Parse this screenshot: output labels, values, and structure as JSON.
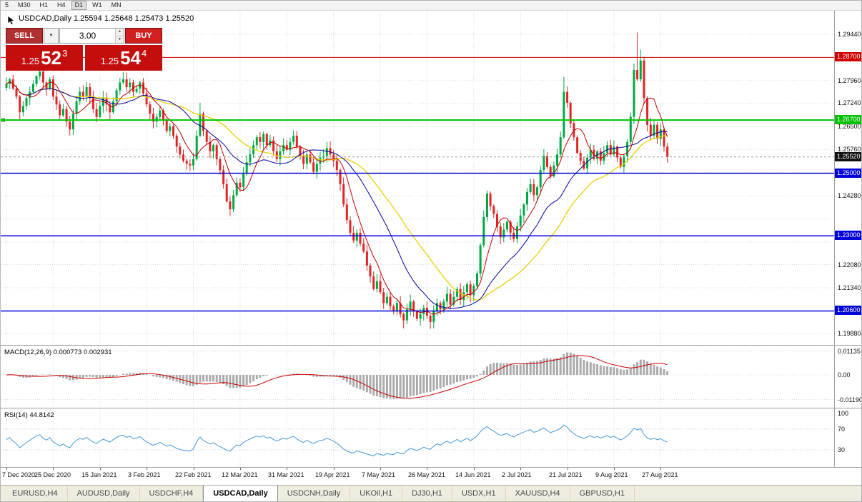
{
  "colors": {
    "bull": "#00a843",
    "bear": "#e02525",
    "grid": "#d8d8d8",
    "ma_fast": "#c00000",
    "ma_mid": "#0000a0",
    "ma_slow": "#e8d200",
    "hline_red": "#d00000",
    "hline_green": "#00c200",
    "hline_blue": "#0000d8",
    "macd_hist": "#ababab",
    "macd_signal": "#cc0000",
    "rsi_line": "#4499dd",
    "badge_black": "#111111"
  },
  "toolbar": {
    "timeframes": [
      {
        "label": "5",
        "active": false
      },
      {
        "label": "M30",
        "active": false
      },
      {
        "label": "H1",
        "active": false
      },
      {
        "label": "H4",
        "active": false
      },
      {
        "label": "D1",
        "active": true
      },
      {
        "label": "W1",
        "active": false
      },
      {
        "label": "MN",
        "active": false
      }
    ]
  },
  "chart": {
    "title": "USDCAD,Daily 1.25594 1.25648 1.25473 1.25520"
  },
  "trade_panel": {
    "sell_label": "SELL",
    "buy_label": "BUY",
    "volume": "3.00",
    "icons": {
      "dropdown": "▼",
      "up": "▲",
      "down": "▼"
    },
    "sell_price": {
      "prefix": "1.25",
      "big": "52",
      "sup": "3"
    },
    "buy_price": {
      "prefix": "1.25",
      "big": "54",
      "sup": "4"
    }
  },
  "tabs": {
    "items": [
      {
        "label": "EURUSD,H4",
        "active": false
      },
      {
        "label": "AUDUSD,Daily",
        "active": false
      },
      {
        "label": "USDCHF,H4",
        "active": false
      },
      {
        "label": "USDCAD,Daily",
        "active": true
      },
      {
        "label": "USDCNH,Daily",
        "active": false
      },
      {
        "label": "UKOil,H1",
        "active": false
      },
      {
        "label": "DJ30,H1",
        "active": false
      },
      {
        "label": "USDX,H1",
        "active": false
      },
      {
        "label": "XAUUSD,H4",
        "active": false
      },
      {
        "label": "GBPUSD,H1",
        "active": false
      }
    ]
  },
  "chart_data": {
    "type": "candlestick",
    "symbol": "USDCAD",
    "timeframe": "Daily",
    "ohlc": {
      "open": "1.25594",
      "high": "1.25648",
      "low": "1.25473",
      "close": "1.25520"
    },
    "y_axis": {
      "min": 1.1988,
      "max": 1.2944,
      "labels_visible": [
        {
          "price": 1.2944,
          "label": "1.29440"
        },
        {
          "price": 1.2796,
          "label": "1.27960"
        },
        {
          "price": 1.2724,
          "label": "1.27240"
        },
        {
          "price": 1.265,
          "label": "1.26500"
        },
        {
          "price": 1.2576,
          "label": "1.25760"
        },
        {
          "price": 1.2428,
          "label": "1.24280"
        },
        {
          "price": 1.2208,
          "label": "1.22080"
        },
        {
          "price": 1.2134,
          "label": "1.21340"
        },
        {
          "price": 1.1988,
          "label": "1.19880"
        }
      ],
      "grid_prices": [
        1.2944,
        1.287,
        1.2796,
        1.2724,
        1.265,
        1.2576,
        1.2502,
        1.2428,
        1.2354,
        1.228,
        1.2208,
        1.2134,
        1.206,
        1.1988
      ]
    },
    "x_axis": {
      "labels": [
        "7 Dec 2020",
        "25 Dec 2020",
        "15 Jan 2021",
        "3 Feb 2021",
        "22 Feb 2021",
        "12 Mar 2021",
        "31 Mar 2021",
        "19 Apr 2021",
        "7 May 2021",
        "26 May 2021",
        "14 Jun 2021",
        "2 Jul 2021",
        "21 Jul 2021",
        "9 Aug 2021",
        "27 Aug 2021"
      ],
      "label_indices": [
        0,
        14,
        28,
        42,
        56,
        70,
        84,
        98,
        112,
        126,
        140,
        154,
        168,
        182,
        196
      ]
    },
    "closes": [
      1.2785,
      1.28,
      1.277,
      1.2745,
      1.2695,
      1.2715,
      1.274,
      1.276,
      1.2785,
      1.281,
      1.2825,
      1.279,
      1.277,
      1.28,
      1.2745,
      1.272,
      1.2685,
      1.2705,
      1.2665,
      1.264,
      1.269,
      1.273,
      1.276,
      1.2745,
      1.2775,
      1.274,
      1.2705,
      1.268,
      1.2715,
      1.274,
      1.272,
      1.2695,
      1.273,
      1.2765,
      1.279,
      1.28,
      1.2775,
      1.279,
      1.276,
      1.277,
      1.279,
      1.2755,
      1.272,
      1.269,
      1.2665,
      1.268,
      1.27,
      1.267,
      1.2635,
      1.265,
      1.262,
      1.2585,
      1.256,
      1.254,
      1.253,
      1.2525,
      1.2545,
      1.262,
      1.269,
      1.2635,
      1.26,
      1.257,
      1.259,
      1.2545,
      1.251,
      1.2465,
      1.241,
      1.2385,
      1.243,
      1.247,
      1.2455,
      1.25,
      1.2535,
      1.256,
      1.259,
      1.2615,
      1.26,
      1.2625,
      1.259,
      1.2605,
      1.257,
      1.2545,
      1.257,
      1.259,
      1.2575,
      1.26,
      1.262,
      1.2585,
      1.2555,
      1.253,
      1.256,
      1.2535,
      1.2505,
      1.253,
      1.255,
      1.2555,
      1.258,
      1.256,
      1.254,
      1.251,
      1.2465,
      1.24,
      1.235,
      1.231,
      1.2285,
      1.231,
      1.2275,
      1.225,
      1.2205,
      1.217,
      1.213,
      1.2155,
      1.212,
      1.2085,
      1.2105,
      1.2075,
      1.206,
      1.2085,
      1.205,
      1.203,
      1.2065,
      1.209,
      1.206,
      1.2035,
      1.205,
      1.207,
      1.2045,
      1.2025,
      1.206,
      1.2085,
      1.2065,
      1.209,
      1.2115,
      1.208,
      1.2105,
      1.213,
      1.2095,
      1.212,
      1.2145,
      1.211,
      1.214,
      1.218,
      1.227,
      1.236,
      1.2435,
      1.2395,
      1.237,
      1.233,
      1.2295,
      1.232,
      1.2345,
      1.231,
      1.229,
      1.233,
      1.2365,
      1.24,
      1.244,
      1.2465,
      1.243,
      1.2455,
      1.251,
      1.2555,
      1.252,
      1.249,
      1.2525,
      1.256,
      1.2615,
      1.276,
      1.2725,
      1.266,
      1.2615,
      1.2565,
      1.254,
      1.2515,
      1.255,
      1.2575,
      1.2545,
      1.257,
      1.254,
      1.2565,
      1.259,
      1.256,
      1.2585,
      1.255,
      1.252,
      1.2555,
      1.26,
      1.268,
      1.283,
      1.28,
      1.286,
      1.274,
      1.2655,
      1.262,
      1.2655,
      1.261,
      1.264,
      1.2585,
      1.2552
    ],
    "wick_overrides": {
      "4": [
        0.0005,
        0.0022
      ],
      "58": [
        0.0035,
        0.0005
      ],
      "119": [
        0.0005,
        0.0026
      ],
      "127": [
        0.0005,
        0.0022
      ],
      "167": [
        0.0048,
        0.0006
      ],
      "189": [
        0.012,
        0.0005
      ],
      "190": [
        0.0035,
        0.0008
      ]
    },
    "ma_periods": {
      "fast": 7,
      "mid": 21,
      "slow": 34
    },
    "hlines": [
      {
        "price": 1.287,
        "badge": "1.28700",
        "color_key": "hline_red",
        "width": 1
      },
      {
        "price": 1.267,
        "badge": "1.26700",
        "color_key": "hline_green",
        "width": 2
      },
      {
        "price": 1.25,
        "badge": "1.25000",
        "color_key": "hline_blue",
        "width": 1.5
      },
      {
        "price": 1.23,
        "badge": "1.23000",
        "color_key": "hline_blue",
        "width": 1.5
      },
      {
        "price": 1.206,
        "badge": "1.20600",
        "color_key": "hline_blue",
        "width": 1.5
      }
    ],
    "current_price": {
      "value": 1.2552,
      "badge": "1.25520"
    },
    "macd": {
      "label": "MACD(12,26,9) 0.000773 0.002931",
      "fast": 12,
      "slow": 26,
      "signal": 9,
      "axis": [
        {
          "v": 0.01135,
          "label": "0.01135"
        },
        {
          "v": 0,
          "label": "0.00"
        },
        {
          "v": -0.0119,
          "label": "-0.01190"
        }
      ]
    },
    "rsi": {
      "label": "RSI(14) 44.8142",
      "period": 14,
      "levels": [
        70,
        30
      ],
      "axis": [
        {
          "v": 100,
          "label": "100"
        },
        {
          "v": 70,
          "label": "70"
        },
        {
          "v": 30,
          "label": "30"
        }
      ]
    }
  }
}
